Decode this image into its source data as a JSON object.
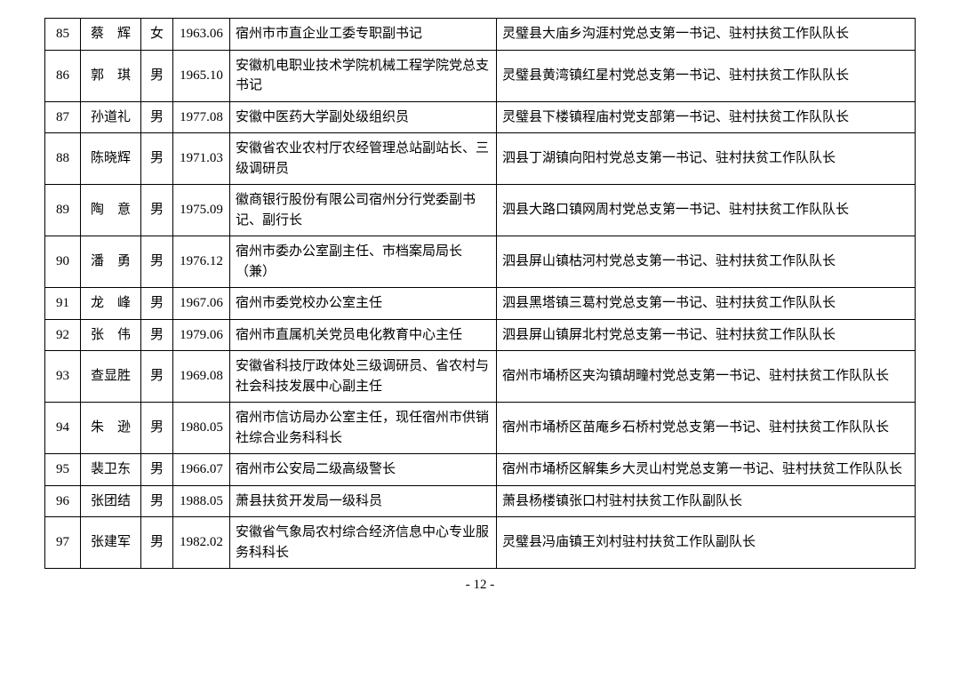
{
  "page_number": "- 12 -",
  "rows": [
    {
      "num": "85",
      "name": "蔡　辉",
      "gender": "女",
      "date": "1963.06",
      "pos1": "宿州市市直企业工委专职副书记",
      "pos2": "灵璧县大庙乡沟涯村党总支第一书记、驻村扶贫工作队队长"
    },
    {
      "num": "86",
      "name": "郭　琪",
      "gender": "男",
      "date": "1965.10",
      "pos1": "安徽机电职业技术学院机械工程学院党总支书记",
      "pos2": "灵璧县黄湾镇红星村党总支第一书记、驻村扶贫工作队队长"
    },
    {
      "num": "87",
      "name": "孙道礼",
      "gender": "男",
      "date": "1977.08",
      "pos1": "安徽中医药大学副处级组织员",
      "pos2": "灵璧县下楼镇程庙村党支部第一书记、驻村扶贫工作队队长"
    },
    {
      "num": "88",
      "name": "陈晓辉",
      "gender": "男",
      "date": "1971.03",
      "pos1": "安徽省农业农村厅农经管理总站副站长、三级调研员",
      "pos2": "泗县丁湖镇向阳村党总支第一书记、驻村扶贫工作队队长"
    },
    {
      "num": "89",
      "name": "陶　意",
      "gender": "男",
      "date": "1975.09",
      "pos1": "徽商银行股份有限公司宿州分行党委副书记、副行长",
      "pos2": "泗县大路口镇网周村党总支第一书记、驻村扶贫工作队队长"
    },
    {
      "num": "90",
      "name": "潘　勇",
      "gender": "男",
      "date": "1976.12",
      "pos1": "宿州市委办公室副主任、市档案局局长（兼）",
      "pos2": "泗县屏山镇枯河村党总支第一书记、驻村扶贫工作队队长"
    },
    {
      "num": "91",
      "name": "龙　峰",
      "gender": "男",
      "date": "1967.06",
      "pos1": "宿州市委党校办公室主任",
      "pos2": "泗县黑塔镇三葛村党总支第一书记、驻村扶贫工作队队长"
    },
    {
      "num": "92",
      "name": "张　伟",
      "gender": "男",
      "date": "1979.06",
      "pos1": "宿州市直属机关党员电化教育中心主任",
      "pos2": "泗县屏山镇屏北村党总支第一书记、驻村扶贫工作队队长"
    },
    {
      "num": "93",
      "name": "查显胜",
      "gender": "男",
      "date": "1969.08",
      "pos1": "安徽省科技厅政体处三级调研员、省农村与社会科技发展中心副主任",
      "pos2": "宿州市埇桥区夹沟镇胡疃村党总支第一书记、驻村扶贫工作队队长"
    },
    {
      "num": "94",
      "name": "朱　逊",
      "gender": "男",
      "date": "1980.05",
      "pos1": "宿州市信访局办公室主任，现任宿州市供销社综合业务科科长",
      "pos2": "宿州市埇桥区苗庵乡石桥村党总支第一书记、驻村扶贫工作队队长"
    },
    {
      "num": "95",
      "name": "裴卫东",
      "gender": "男",
      "date": "1966.07",
      "pos1": "宿州市公安局二级高级警长",
      "pos2": "宿州市埇桥区解集乡大灵山村党总支第一书记、驻村扶贫工作队队长"
    },
    {
      "num": "96",
      "name": "张团结",
      "gender": "男",
      "date": "1988.05",
      "pos1": "萧县扶贫开发局一级科员",
      "pos2": "萧县杨楼镇张口村驻村扶贫工作队副队长"
    },
    {
      "num": "97",
      "name": "张建军",
      "gender": "男",
      "date": "1982.02",
      "pos1": "安徽省气象局农村综合经济信息中心专业服务科科长",
      "pos2": "灵璧县冯庙镇王刘村驻村扶贫工作队副队长"
    }
  ]
}
